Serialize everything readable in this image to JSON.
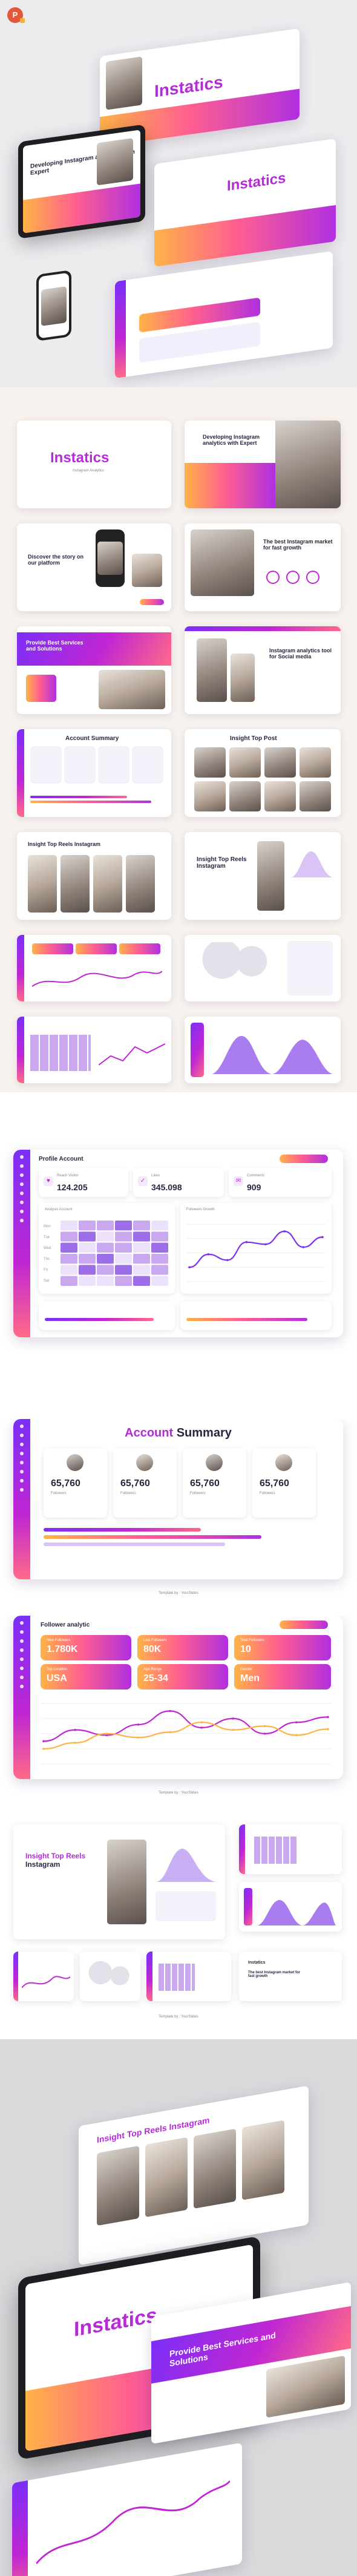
{
  "app": {
    "icon": "powerpoint-icon",
    "icon_letter": "P"
  },
  "brand": {
    "title": "Instatics",
    "subtitle": "Instagram Analytics"
  },
  "slides": {
    "developing_title": "Developing Instagram analytics with Expert",
    "discover_title": "Discover the story on our platform",
    "best_title": "The best Instagram market for fast growth",
    "provide_title": "Provide Best Services and Solutions",
    "analytics_tool_title": "Instagram analytics tool for Social media",
    "account_summary_title": "Account Summary",
    "insight_top_post_title": "Insight Top Post",
    "insight_top_reels_title": "Insight Top Reels Instagram",
    "follower_title": "Follower analytic",
    "profile_title": "Profile Account"
  },
  "profile": {
    "label": "Profile Account",
    "stats": [
      {
        "label": "Reach Visitor",
        "value": "124.205",
        "icon": "heart-icon"
      },
      {
        "label": "Likes",
        "value": "345.098",
        "icon": "thumbs-up-icon"
      },
      {
        "label": "Comments",
        "value": "909",
        "icon": "comment-icon"
      }
    ],
    "analysis_label": "Analysis Account",
    "followers_label": "Followers Growth",
    "week_days": [
      "Mon",
      "Tue",
      "Wed",
      "Thu",
      "Fri",
      "Sat"
    ]
  },
  "account_summary": {
    "title_a": "Account",
    "title_b": "Summary",
    "cards": [
      {
        "value": "65,760",
        "label": "Followers"
      },
      {
        "value": "65,760",
        "label": "Followers"
      },
      {
        "value": "65,760",
        "label": "Followers"
      },
      {
        "value": "65,760",
        "label": "Followers"
      }
    ],
    "footer": "Template by : YourSlides"
  },
  "follower": {
    "title": "Follower analytic",
    "tiles": [
      {
        "label": "New Followers",
        "value": "1.780K"
      },
      {
        "label": "Lost Followers",
        "value": "80K"
      },
      {
        "label": "Total Followers",
        "value": "10"
      },
      {
        "label": "Top Location",
        "value": "USA"
      },
      {
        "label": "Age Range",
        "value": "25-34"
      },
      {
        "label": "Gender",
        "value": "Men"
      }
    ],
    "footer": "Template by : YourSlides"
  },
  "insight": {
    "title_a": "Insight Top Reels",
    "title_b": "Instagram",
    "footer": "Template by : YourSlides"
  },
  "colors": {
    "purple": "#7b2ff7",
    "magenta": "#c026d3",
    "pink": "#ff6a88",
    "orange": "#ffb347"
  },
  "chart_data": [
    {
      "type": "line",
      "title": "Followers Growth",
      "x": [
        "1",
        "2",
        "3",
        "4",
        "5",
        "6",
        "7",
        "8"
      ],
      "series": [
        {
          "values": [
            20,
            38,
            30,
            55,
            52,
            70,
            48,
            62
          ]
        }
      ],
      "ylim": [
        0,
        80
      ]
    },
    {
      "type": "line",
      "title": "Follower analytic",
      "x": [
        "1",
        "2",
        "3",
        "4",
        "5",
        "6",
        "7",
        "8",
        "9",
        "10"
      ],
      "series": [
        {
          "values": [
            30,
            45,
            38,
            52,
            70,
            48,
            60,
            40,
            55,
            62
          ]
        },
        {
          "values": [
            20,
            28,
            40,
            35,
            42,
            55,
            45,
            50,
            38,
            46
          ]
        }
      ],
      "ylim": [
        0,
        80
      ]
    },
    {
      "type": "heatmap",
      "title": "Analysis Account",
      "rows": 6,
      "cols": 6,
      "values": [
        [
          1,
          2,
          2,
          3,
          2,
          1
        ],
        [
          2,
          3,
          1,
          2,
          3,
          2
        ],
        [
          3,
          1,
          2,
          2,
          1,
          3
        ],
        [
          2,
          2,
          3,
          1,
          2,
          2
        ],
        [
          1,
          3,
          2,
          3,
          1,
          2
        ],
        [
          2,
          1,
          1,
          2,
          3,
          1
        ]
      ]
    }
  ]
}
